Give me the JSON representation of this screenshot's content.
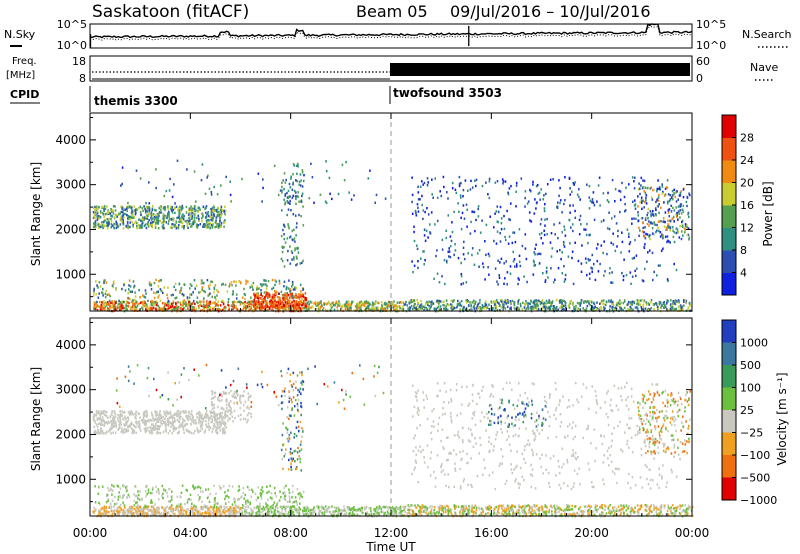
{
  "header": {
    "station": "Saskatoon (fitACF)",
    "beam": "Beam 05",
    "dates": "09/Jul/2016 – 10/Jul/2016"
  },
  "nsky_panel": {
    "left_label": "N.Sky",
    "right_label": "N.Search",
    "left_ticks": [
      "10^5",
      "10^0"
    ],
    "right_ticks": [
      "10^5",
      "10^0"
    ]
  },
  "freq_panel": {
    "left_label_1": "Freq.",
    "left_label_2": "[MHz]",
    "right_label": "Nave",
    "left_ticks": [
      "18",
      "8"
    ],
    "right_ticks": [
      "60",
      "0"
    ]
  },
  "cpid_panel": {
    "label": "CPID",
    "programs": [
      {
        "name": "themis 3300",
        "start_hour": 0
      },
      {
        "name": "twofsound 3503",
        "start_hour": 12
      }
    ]
  },
  "chart_data": [
    {
      "type": "heatmap",
      "name": "power",
      "ylabel": "Slant Range [km]",
      "xlabel": "",
      "ylim": [
        180,
        4600
      ],
      "yticks": [
        1000,
        2000,
        3000,
        4000
      ],
      "xlim": [
        0,
        24
      ],
      "colorbar": {
        "label": "Power [dB]",
        "ticks": [
          "4",
          "8",
          "12",
          "16",
          "20",
          "24",
          "28"
        ],
        "colors": [
          "#1020e0",
          "#2a4fb0",
          "#2f8f80",
          "#55a050",
          "#c8cc30",
          "#f08a10",
          "#f05010",
          "#e00000"
        ]
      }
    },
    {
      "type": "heatmap",
      "name": "velocity",
      "ylabel": "Slant Range [km]",
      "xlabel": "Time UT",
      "ylim": [
        180,
        4600
      ],
      "yticks": [
        1000,
        2000,
        3000,
        4000
      ],
      "xlim": [
        0,
        24
      ],
      "xtick_labels": [
        "00:00",
        "04:00",
        "08:00",
        "12:00",
        "16:00",
        "20:00",
        "00:00"
      ],
      "colorbar": {
        "label": "Velocity [m s⁻¹]",
        "ticks": [
          "1000",
          "500",
          "100",
          "25",
          "−25",
          "−100",
          "−500",
          "−1000"
        ],
        "colors": [
          "#2040c0",
          "#3a78a0",
          "#3a9a5a",
          "#6cc040",
          "#c8c8c0",
          "#f0a020",
          "#f07010",
          "#e00000"
        ]
      }
    }
  ]
}
